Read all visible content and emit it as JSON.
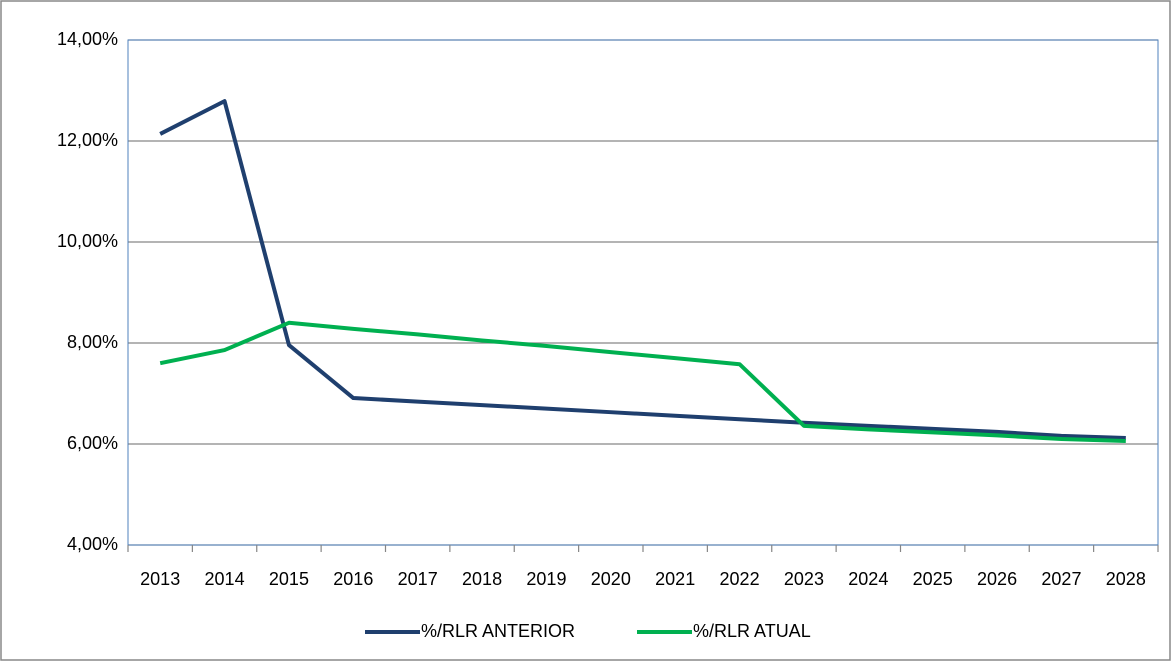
{
  "chart_data": {
    "type": "line",
    "categories": [
      "2013",
      "2014",
      "2015",
      "2016",
      "2017",
      "2018",
      "2019",
      "2020",
      "2021",
      "2022",
      "2023",
      "2024",
      "2025",
      "2026",
      "2027",
      "2028"
    ],
    "series": [
      {
        "name": "%/RLR ANTERIOR",
        "color": "#1f3f6e",
        "values": [
          12.14,
          12.79,
          7.96,
          6.91,
          6.84,
          6.77,
          6.7,
          6.63,
          6.56,
          6.49,
          6.42,
          6.36,
          6.3,
          6.24,
          6.16,
          6.12
        ]
      },
      {
        "name": "%/RLR ATUAL",
        "color": "#00b050",
        "values": [
          7.6,
          7.86,
          8.4,
          8.28,
          8.17,
          8.05,
          7.94,
          7.82,
          7.7,
          7.58,
          6.36,
          6.29,
          6.23,
          6.17,
          6.1,
          6.06
        ]
      }
    ],
    "ylim": [
      4,
      14
    ],
    "yticks": [
      {
        "value": 4,
        "label": "4,00%"
      },
      {
        "value": 6,
        "label": "6,00%"
      },
      {
        "value": 8,
        "label": "8,00%"
      },
      {
        "value": 10,
        "label": "10,00%"
      },
      {
        "value": 12,
        "label": "12,00%"
      },
      {
        "value": 14,
        "label": "14,00%"
      }
    ],
    "grid": true,
    "legend": "bottom"
  }
}
